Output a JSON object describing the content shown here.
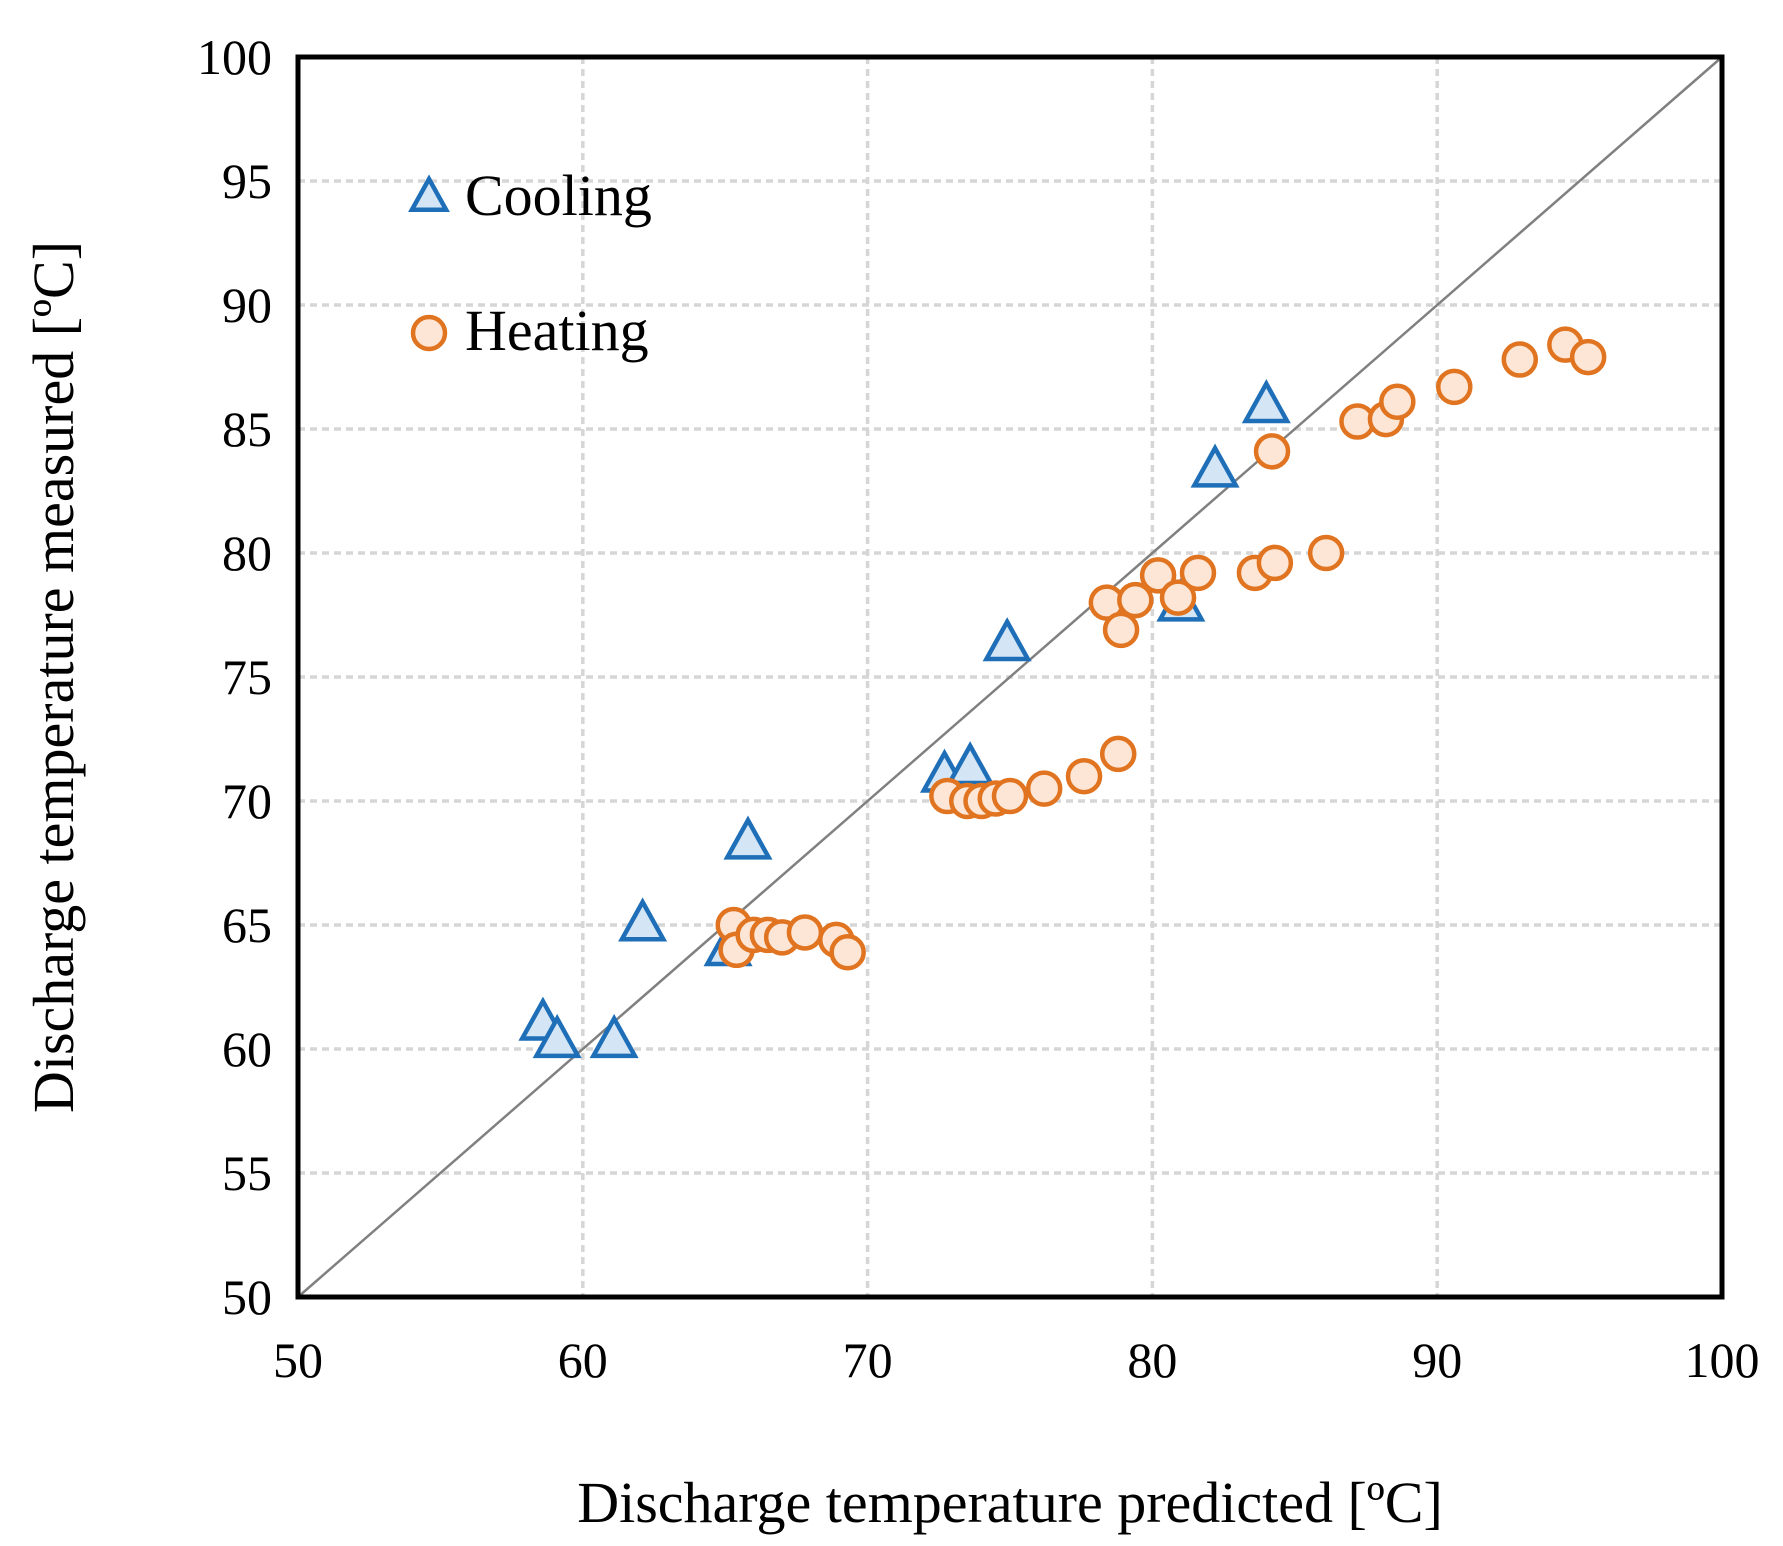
{
  "chart_data": {
    "type": "scatter",
    "title": "",
    "xlabel": "Discharge temperature predicted [ºC]",
    "ylabel": "Discharge temperature measured [ºC]",
    "xlim": [
      50,
      100
    ],
    "ylim": [
      50,
      100
    ],
    "xticks": [
      "50",
      "60",
      "70",
      "80",
      "90",
      "100"
    ],
    "yticks": [
      "50",
      "55",
      "60",
      "65",
      "70",
      "75",
      "80",
      "85",
      "90",
      "95",
      "100"
    ],
    "grid": true,
    "legend_position": "top-left",
    "reference_line": {
      "from": [
        50,
        50
      ],
      "to": [
        100,
        100
      ]
    },
    "series": [
      {
        "name": "Cooling",
        "marker": "triangle",
        "stroke": "#1f6fb8",
        "fill": "#d4e6f5",
        "points": [
          [
            58.6,
            61.0
          ],
          [
            59.1,
            60.3
          ],
          [
            61.1,
            60.3
          ],
          [
            62.1,
            65.0
          ],
          [
            65.1,
            64.0
          ],
          [
            65.8,
            68.3
          ],
          [
            72.7,
            71.0
          ],
          [
            73.6,
            71.3
          ],
          [
            74.9,
            76.3
          ],
          [
            81.0,
            77.9
          ],
          [
            82.2,
            83.3
          ],
          [
            84.0,
            85.9
          ]
        ]
      },
      {
        "name": "Heating",
        "marker": "circle",
        "stroke": "#e07420",
        "fill": "#fde6d6",
        "points": [
          [
            65.3,
            65.0
          ],
          [
            65.4,
            64.0
          ],
          [
            66.0,
            64.6
          ],
          [
            66.5,
            64.6
          ],
          [
            67.0,
            64.5
          ],
          [
            67.8,
            64.7
          ],
          [
            68.9,
            64.4
          ],
          [
            69.3,
            63.9
          ],
          [
            72.8,
            70.2
          ],
          [
            73.5,
            70.0
          ],
          [
            74.0,
            70.0
          ],
          [
            74.5,
            70.1
          ],
          [
            75.0,
            70.2
          ],
          [
            76.2,
            70.5
          ],
          [
            77.6,
            71.0
          ],
          [
            78.8,
            71.9
          ],
          [
            78.4,
            78.0
          ],
          [
            78.9,
            76.9
          ],
          [
            79.4,
            78.1
          ],
          [
            80.2,
            79.1
          ],
          [
            80.9,
            78.2
          ],
          [
            81.6,
            79.2
          ],
          [
            83.6,
            79.2
          ],
          [
            84.3,
            79.6
          ],
          [
            86.1,
            80.0
          ],
          [
            84.2,
            84.1
          ],
          [
            87.2,
            85.3
          ],
          [
            88.2,
            85.4
          ],
          [
            88.6,
            86.1
          ],
          [
            90.6,
            86.7
          ],
          [
            92.9,
            87.8
          ],
          [
            94.5,
            88.4
          ],
          [
            95.3,
            87.9
          ]
        ]
      }
    ]
  }
}
